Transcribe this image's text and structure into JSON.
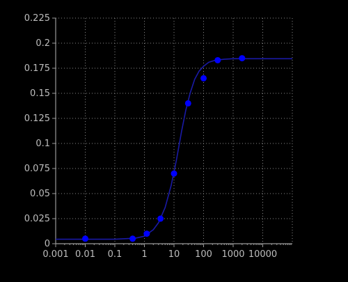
{
  "chart_data": {
    "type": "scatter",
    "x_scale": "log",
    "xlim": [
      0.001,
      100000
    ],
    "ylim": [
      0,
      0.225
    ],
    "x_ticks": [
      0.001,
      0.01,
      0.1,
      1,
      10,
      100,
      1000,
      10000
    ],
    "x_tick_labels": [
      "0.001",
      "0.01",
      "0.1",
      "1",
      "10",
      "100",
      "1000",
      "10000"
    ],
    "y_ticks": [
      0,
      0.025,
      0.05,
      0.075,
      0.1,
      0.125,
      0.15,
      0.175,
      0.2,
      0.225
    ],
    "y_tick_labels": [
      "0",
      "0.025",
      "0.05",
      "0.075",
      "0.1",
      "0.125",
      "0.15",
      "0.175",
      "0.2",
      "0.225"
    ],
    "grid": true,
    "series": [
      {
        "type": "scatter",
        "points": [
          {
            "x": 0.01,
            "y": 0.005
          },
          {
            "x": 0.4,
            "y": 0.005
          },
          {
            "x": 1.2,
            "y": 0.01
          },
          {
            "x": 3.5,
            "y": 0.025
          },
          {
            "x": 10,
            "y": 0.07
          },
          {
            "x": 30,
            "y": 0.14
          },
          {
            "x": 100,
            "y": 0.165
          },
          {
            "x": 300,
            "y": 0.183
          },
          {
            "x": 2000,
            "y": 0.185
          }
        ]
      },
      {
        "type": "line",
        "points": [
          {
            "x": 0.001,
            "y": 0.0045
          },
          {
            "x": 0.1,
            "y": 0.0045
          },
          {
            "x": 0.5,
            "y": 0.0055
          },
          {
            "x": 1,
            "y": 0.0075
          },
          {
            "x": 2,
            "y": 0.014
          },
          {
            "x": 3,
            "y": 0.021
          },
          {
            "x": 5,
            "y": 0.036
          },
          {
            "x": 8,
            "y": 0.058
          },
          {
            "x": 12,
            "y": 0.083
          },
          {
            "x": 18,
            "y": 0.112
          },
          {
            "x": 25,
            "y": 0.133
          },
          {
            "x": 35,
            "y": 0.15
          },
          {
            "x": 50,
            "y": 0.164
          },
          {
            "x": 70,
            "y": 0.172
          },
          {
            "x": 100,
            "y": 0.177
          },
          {
            "x": 150,
            "y": 0.181
          },
          {
            "x": 250,
            "y": 0.183
          },
          {
            "x": 500,
            "y": 0.184
          },
          {
            "x": 1000,
            "y": 0.1845
          },
          {
            "x": 100000,
            "y": 0.1845
          }
        ]
      }
    ],
    "colors": {
      "marker": "#0000ff",
      "curve": "#1a1aa6",
      "axis": "#9a9a9a",
      "grid": "#8a8a8a",
      "text": "#bdbdbd",
      "background": "#000000"
    }
  }
}
